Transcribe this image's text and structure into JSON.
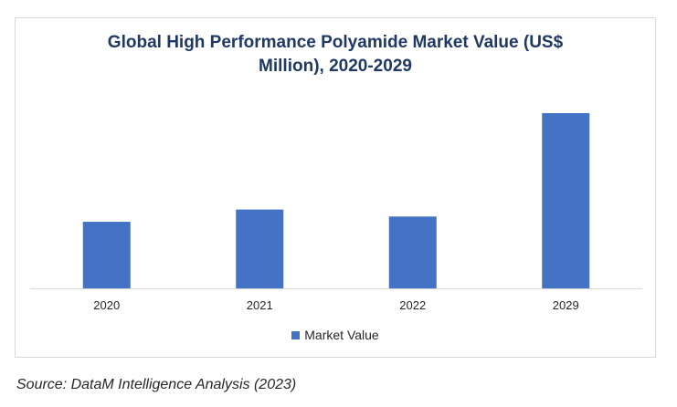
{
  "chart_data": {
    "type": "bar",
    "title_line1": "Global High Performance Polyamide Market Value (US$",
    "title_line2": "Million), 2020-2029",
    "categories": [
      "2020",
      "2021",
      "2022",
      "2029"
    ],
    "series": [
      {
        "name": "Market Value",
        "values": [
          38,
          45,
          41,
          100
        ]
      }
    ],
    "xlabel": "",
    "ylabel": "",
    "ylim": [
      0,
      100
    ],
    "grid": false,
    "legend": "bottom",
    "bar_color": "#4472c4"
  },
  "source": "Source: DataM Intelligence Analysis (2023)"
}
